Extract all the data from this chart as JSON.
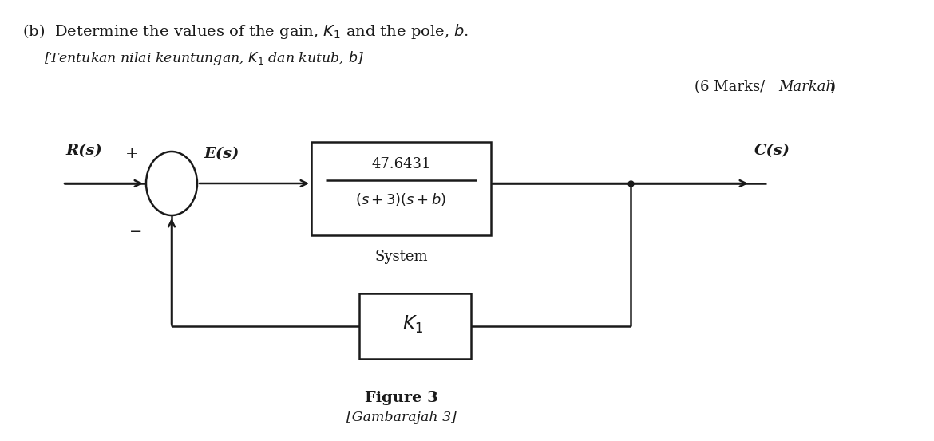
{
  "title_line1_plain": "(b)  Determine the values of the gain, ",
  "title_K1": "K",
  "title_sub1": "1",
  "title_after_K1": " and the pole, ",
  "title_b": "b",
  "title_end": ".",
  "title_line2": "[Tentukan nilai keuntungan, K₁ dan kutub, b]",
  "marks_normal": "(6 Marks/",
  "marks_italic": "Markah",
  "marks_close": ")",
  "Rs_label": "R(s)",
  "plus_label": "+",
  "Es_label": "E(s)",
  "minus_label": "−",
  "system_num": "47.6431",
  "system_den_plain": "(s + 3)(s + b)",
  "system_label": "System",
  "Cs_label": "C(s)",
  "K1_label": "K",
  "figure_bold": "Figure 3",
  "figure_italic": "[Gambarajah 3]",
  "bg_color": "#ffffff",
  "text_color": "#1a1a1a",
  "line_color": "#1a1a1a",
  "lw": 1.8
}
